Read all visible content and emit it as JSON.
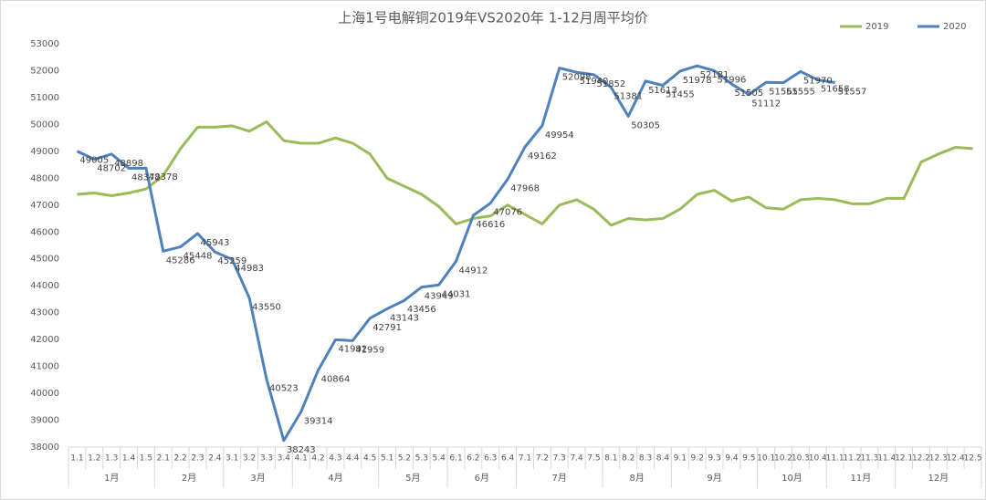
{
  "chart_data": {
    "type": "line",
    "title": "上海1号电解铜2019年VS2020年 1-12月周平均价",
    "categories": [
      "1.1",
      "1.2",
      "1.3",
      "1.4",
      "1.5",
      "2.1",
      "2.2",
      "2.3",
      "2.4",
      "3.1",
      "3.2",
      "3.3",
      "3.4",
      "4.1",
      "4.2",
      "4.3",
      "4.4",
      "4.5",
      "5.1",
      "5.2",
      "5.3",
      "5.4",
      "6.1",
      "6.2",
      "6.3",
      "6.4",
      "7.1",
      "7.2",
      "7.3",
      "7.4",
      "7.5",
      "8.1",
      "8.2",
      "8.3",
      "8.4",
      "9.1",
      "9.2",
      "9.3",
      "9.4",
      "9.5",
      "10.1",
      "10.2",
      "10.3",
      "10.4",
      "11.1",
      "11.2",
      "11.3",
      "11.4",
      "12.1",
      "12.2",
      "12.3",
      "12.4",
      "12.5"
    ],
    "groups": [
      "1月",
      "2月",
      "3月",
      "4月",
      "5月",
      "6月",
      "7月",
      "8月",
      "9月",
      "10月",
      "11月",
      "12月"
    ],
    "series": [
      {
        "name": "2019",
        "color": "#9bbb59",
        "values": [
          47400,
          47450,
          47350,
          47450,
          47600,
          48100,
          49100,
          49900,
          49900,
          49950,
          49750,
          50100,
          49400,
          49300,
          49300,
          49500,
          49300,
          48900,
          48000,
          47700,
          47400,
          46950,
          46300,
          46500,
          46600,
          47000,
          46650,
          46300,
          47000,
          47200,
          46850,
          46250,
          46500,
          46450,
          46500,
          46850,
          47400,
          47550,
          47150,
          47300,
          46900,
          46850,
          47200,
          47250,
          47200,
          47050,
          47050,
          47250,
          47250,
          48600,
          48900,
          49150,
          49100
        ]
      },
      {
        "name": "2020",
        "color": "#4f81bd",
        "data_labels": true,
        "values": [
          49005,
          48702,
          48898,
          48372,
          48378,
          45286,
          45448,
          45943,
          45259,
          44983,
          43550,
          40523,
          38243,
          39314,
          40864,
          41992,
          41959,
          42791,
          43143,
          43456,
          43949,
          44031,
          44912,
          46616,
          47076,
          47968,
          49162,
          49954,
          52098,
          51940,
          51852,
          51381,
          50305,
          51613,
          51455,
          51978,
          52181,
          51996,
          51505,
          51112,
          51565,
          51555,
          51970,
          51658,
          51557,
          null,
          null,
          null,
          null,
          null,
          null,
          null,
          null
        ]
      }
    ],
    "ylim": [
      38000,
      53000
    ],
    "yticks": [
      38000,
      39000,
      40000,
      41000,
      42000,
      43000,
      44000,
      45000,
      46000,
      47000,
      48000,
      49000,
      50000,
      51000,
      52000,
      53000
    ],
    "legend": "top-right",
    "grid": false
  }
}
